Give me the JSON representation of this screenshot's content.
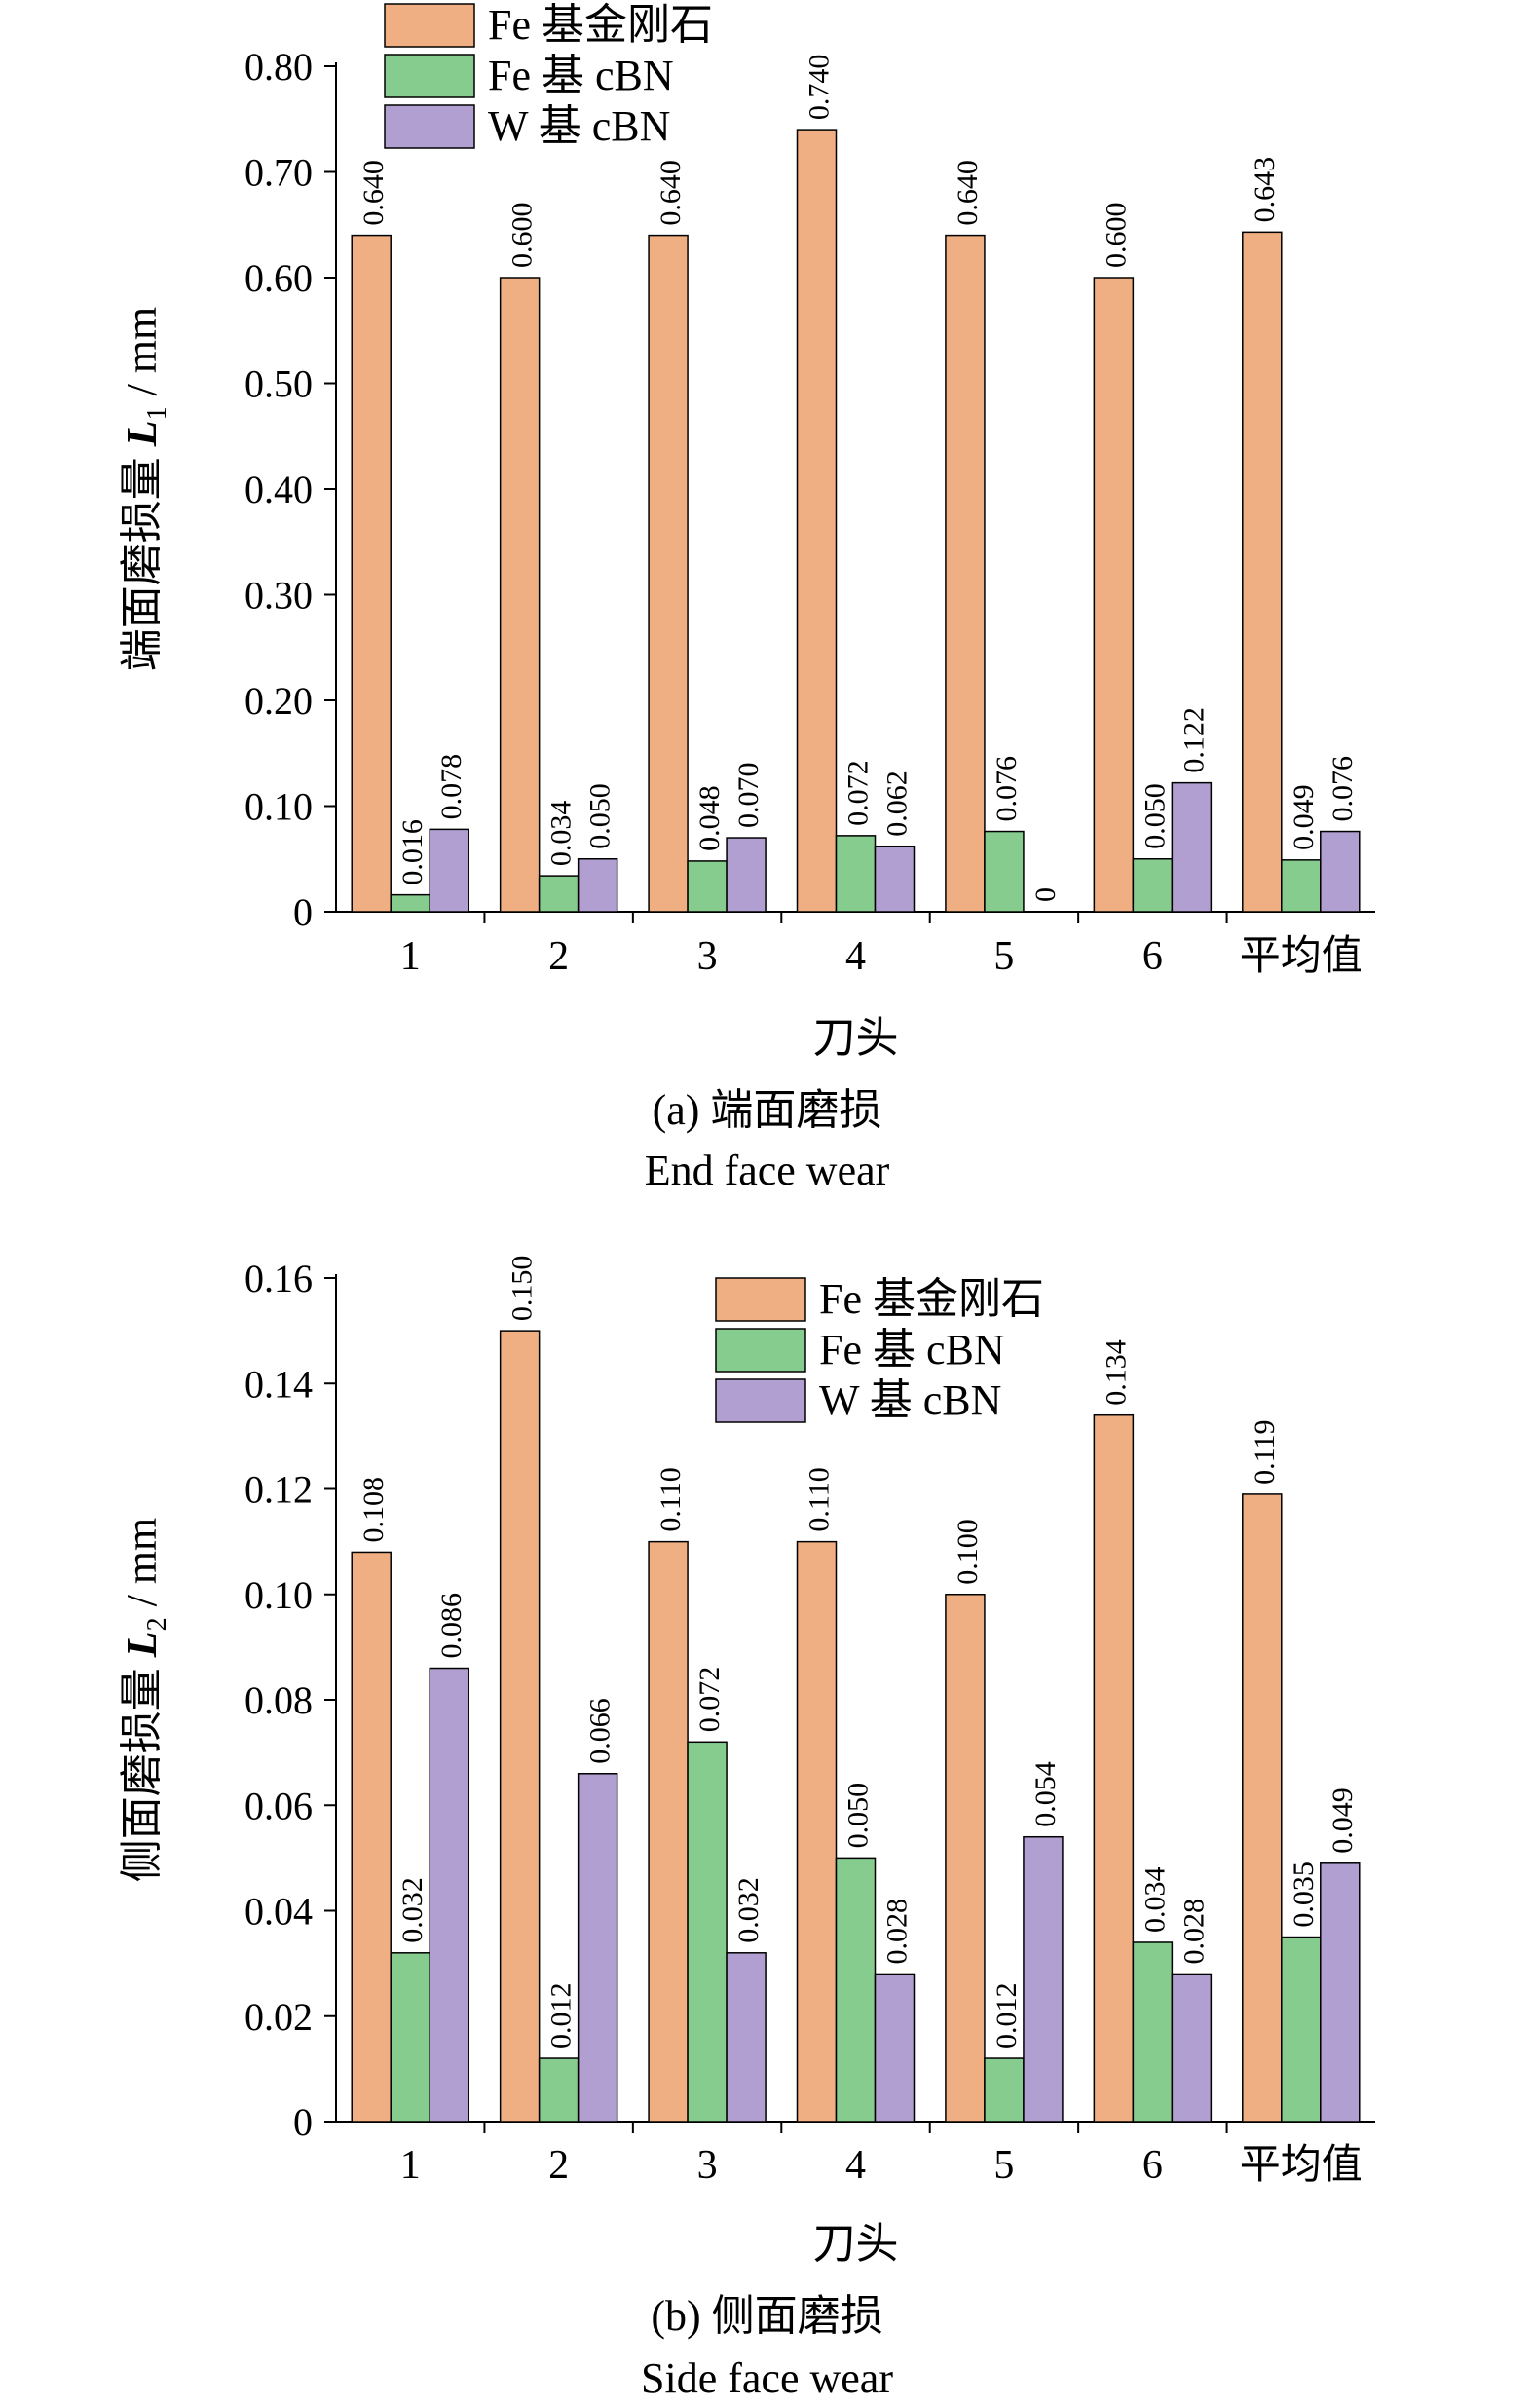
{
  "chart_data": [
    {
      "type": "bar",
      "caption": "(a) 端面磨损",
      "caption_en": "End face wear",
      "xlabel": "刀头",
      "ylabel_prefix": "端面磨损量",
      "ylabel_var": "L",
      "ylabel_sub": "1",
      "ylabel_unit": " / mm",
      "ylim": [
        0,
        0.8
      ],
      "yticks": [
        0,
        0.1,
        0.2,
        0.3,
        0.4,
        0.5,
        0.6,
        0.7,
        0.8
      ],
      "ytick_labels": [
        "0",
        "0.10",
        "0.20",
        "0.30",
        "0.40",
        "0.50",
        "0.60",
        "0.70",
        "0.80"
      ],
      "categories": [
        "1",
        "2",
        "3",
        "4",
        "5",
        "6",
        "平均值"
      ],
      "legend_position": "top-left",
      "series": [
        {
          "name": "Fe 基金刚石",
          "color": "#F0AF82",
          "values": [
            0.64,
            0.6,
            0.64,
            0.74,
            0.64,
            0.6,
            0.643
          ],
          "labels": [
            "0.640",
            "0.600",
            "0.640",
            "0.740",
            "0.640",
            "0.600",
            "0.643"
          ]
        },
        {
          "name": "Fe 基 cBN",
          "color": "#86CC8F",
          "values": [
            0.016,
            0.034,
            0.048,
            0.072,
            0.076,
            0.05,
            0.049
          ],
          "labels": [
            "0.016",
            "0.034",
            "0.048",
            "0.072",
            "0.076",
            "0.050",
            "0.049"
          ]
        },
        {
          "name": "W 基 cBN",
          "color": "#B09FD0",
          "values": [
            0.078,
            0.05,
            0.07,
            0.062,
            0,
            0.122,
            0.076
          ],
          "labels": [
            "0.078",
            "0.050",
            "0.070",
            "0.062",
            "0",
            "0.122",
            "0.076"
          ]
        }
      ]
    },
    {
      "type": "bar",
      "caption": "(b) 侧面磨损",
      "caption_en": "Side face wear",
      "xlabel": "刀头",
      "ylabel_prefix": "侧面磨损量",
      "ylabel_var": "L",
      "ylabel_sub": "2",
      "ylabel_unit": " / mm",
      "ylim": [
        0,
        0.16
      ],
      "yticks": [
        0,
        0.02,
        0.04,
        0.06,
        0.08,
        0.1,
        0.12,
        0.14,
        0.16
      ],
      "ytick_labels": [
        "0",
        "0.02",
        "0.04",
        "0.06",
        "0.08",
        "0.10",
        "0.12",
        "0.14",
        "0.16"
      ],
      "categories": [
        "1",
        "2",
        "3",
        "4",
        "5",
        "6",
        "平均值"
      ],
      "legend_position": "top-right",
      "series": [
        {
          "name": "Fe 基金刚石",
          "color": "#F0AF82",
          "values": [
            0.108,
            0.15,
            0.11,
            0.11,
            0.1,
            0.134,
            0.119
          ],
          "labels": [
            "0.108",
            "0.150",
            "0.110",
            "0.110",
            "0.100",
            "0.134",
            "0.119"
          ]
        },
        {
          "name": "Fe 基 cBN",
          "color": "#86CC8F",
          "values": [
            0.032,
            0.012,
            0.072,
            0.05,
            0.012,
            0.034,
            0.035
          ],
          "labels": [
            "0.032",
            "0.012",
            "0.072",
            "0.050",
            "0.012",
            "0.034",
            "0.035"
          ]
        },
        {
          "name": "W 基 cBN",
          "color": "#B09FD0",
          "values": [
            0.086,
            0.066,
            0.032,
            0.028,
            0.054,
            0.028,
            0.049
          ],
          "labels": [
            "0.086",
            "0.066",
            "0.032",
            "0.028",
            "0.054",
            "0.028",
            "0.049"
          ]
        }
      ]
    }
  ]
}
